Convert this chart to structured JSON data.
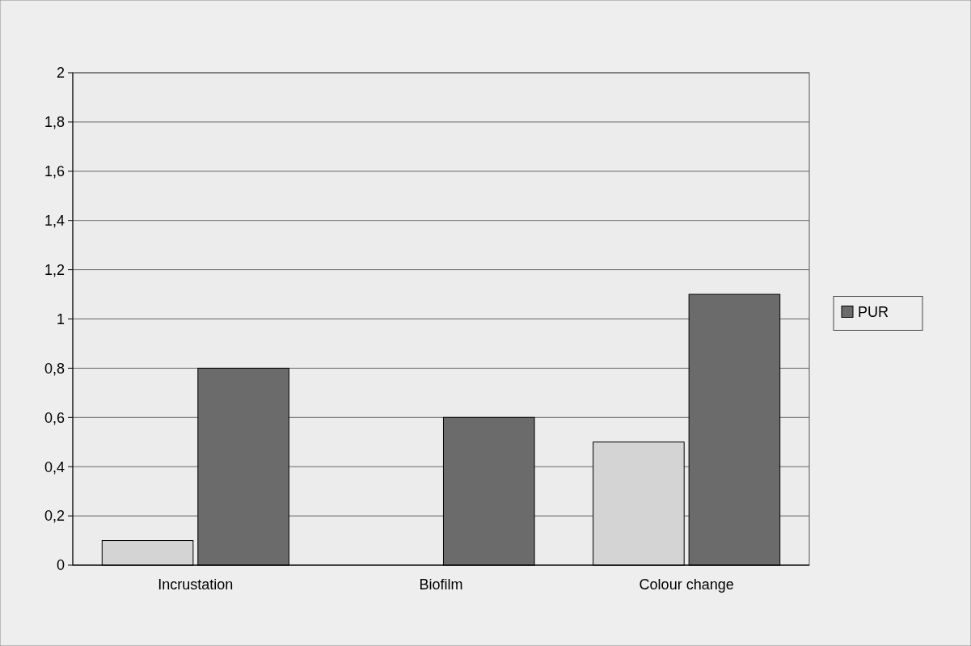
{
  "chart_data": {
    "type": "bar",
    "categories": [
      "Incrustation",
      "Biofilm",
      "Colour change"
    ],
    "series": [
      {
        "color": "#d4d4d4",
        "values": [
          0.1,
          0,
          0.5
        ]
      },
      {
        "name": "PUR",
        "color": "#6b6b6b",
        "values": [
          0.8,
          0.6,
          1.1
        ]
      }
    ],
    "ylim": [
      0,
      2
    ],
    "yticks": [
      0,
      {
        "value": 0.2,
        "label": "0,2"
      },
      {
        "value": 0.4,
        "label": "0,4"
      },
      {
        "value": 0.6,
        "label": "0,6"
      },
      {
        "value": 0.8,
        "label": "0,8"
      },
      1,
      {
        "value": 1.2,
        "label": "1,2"
      },
      {
        "value": 1.4,
        "label": "1,4"
      },
      {
        "value": 1.6,
        "label": "1,6"
      },
      {
        "value": 1.8,
        "label": "1,8"
      },
      2
    ],
    "grid": true,
    "legend": "right"
  }
}
